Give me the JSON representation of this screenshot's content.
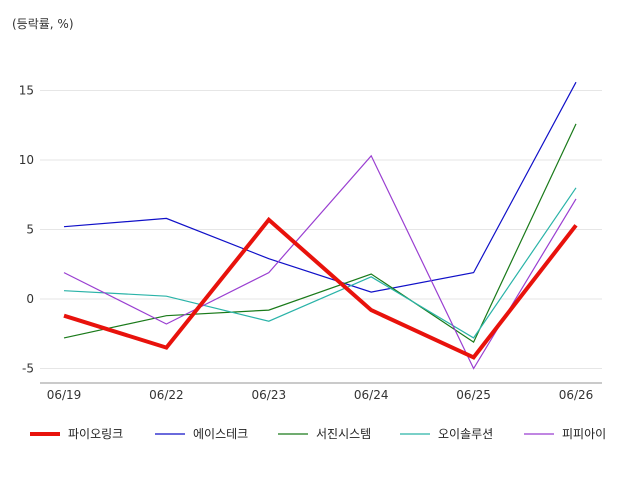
{
  "chart_data": {
    "type": "line",
    "unit_label": "(등락률, %)",
    "categories": [
      "06/19",
      "06/22",
      "06/23",
      "06/24",
      "06/25",
      "06/26"
    ],
    "ylim": [
      -6,
      18
    ],
    "yticks": [
      -5,
      0,
      5,
      10,
      15
    ],
    "grid": true,
    "legend_position": "bottom",
    "series": [
      {
        "name": "파이오링크",
        "color": "#e8120c",
        "width": 4,
        "values": [
          -1.2,
          -3.5,
          5.7,
          -0.8,
          -4.2,
          5.3
        ]
      },
      {
        "name": "에이스테크",
        "color": "#1010c8",
        "width": 1.2,
        "values": [
          5.2,
          5.8,
          2.9,
          0.5,
          1.9,
          15.6
        ]
      },
      {
        "name": "서진시스템",
        "color": "#1a7a1a",
        "width": 1.2,
        "values": [
          -2.8,
          -1.2,
          -0.8,
          1.8,
          -3.1,
          12.6
        ]
      },
      {
        "name": "오이솔루션",
        "color": "#2ab3a8",
        "width": 1.2,
        "values": [
          0.6,
          0.2,
          -1.6,
          1.6,
          -2.8,
          8.0
        ]
      },
      {
        "name": "피피아이",
        "color": "#9a3fd1",
        "width": 1.2,
        "values": [
          1.9,
          -1.8,
          1.9,
          10.3,
          -5.0,
          7.2
        ]
      }
    ]
  }
}
